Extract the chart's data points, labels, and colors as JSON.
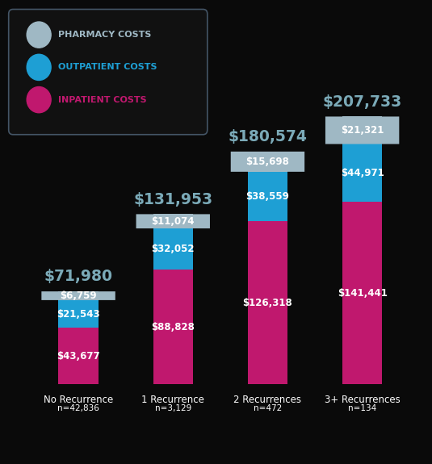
{
  "categories": [
    "No Recurrence",
    "1 Recurrence",
    "2 Recurrences",
    "3+ Recurrences"
  ],
  "subtitles": [
    "n=42,836",
    "n=3,129",
    "n=472",
    "n=134"
  ],
  "inpatient": [
    43677,
    88828,
    126318,
    141441
  ],
  "outpatient": [
    21543,
    32052,
    38559,
    44971
  ],
  "pharmacy": [
    6759,
    11074,
    15698,
    21321
  ],
  "totals": [
    "$71,980",
    "$131,953",
    "$180,574",
    "$207,733"
  ],
  "color_inpatient": "#C0186E",
  "color_outpatient": "#1E9FD4",
  "color_pharmacy": "#9FB8C4",
  "color_total_text": "#7BAAB8",
  "color_bg": "#0a0a0a",
  "bar_width": 0.42,
  "label_fontsize": 8.5,
  "total_fontsize": 13.5,
  "category_fontsize": 8.5,
  "subtitle_fontsize": 7.5,
  "legend_entries": [
    {
      "color": "#9FB8C4",
      "label": "PHARMACY COSTS"
    },
    {
      "color": "#1E9FD4",
      "label": "OUTPATIENT COSTS"
    },
    {
      "color": "#C0186E",
      "label": "INPATIENT COSTS"
    }
  ]
}
